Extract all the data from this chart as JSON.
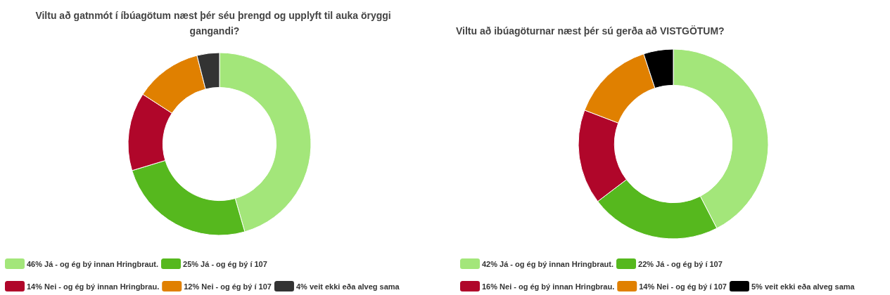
{
  "chart_data": [
    {
      "type": "donut",
      "title": "Viltu að gatnmót í íbúagötum næst þér séu þrengd og upplyft til auka öryggi gangandi?",
      "categories": [
        "46% Já - og ég bý innan Hringbraut.",
        "25% Já - og ég bý í 107",
        "14% Nei - og ég bý innan Hringbrau.",
        "12% Nei - og ég bý í 107",
        "4% veit ekki eða alveg sama"
      ],
      "values": [
        46,
        25,
        14,
        12,
        4
      ],
      "colors": [
        "#a3e67a",
        "#56b81e",
        "#b0062a",
        "#e08000",
        "#333333"
      ],
      "legend": "bottom left"
    },
    {
      "type": "donut",
      "title": "Viltu að ibúagöturnar næst þér sú gerða að VISTGÖTUM?",
      "categories": [
        "42% Já - og ég bý innan Hringbraut.",
        "22% Já - og ég bý í 107",
        "16% Nei - og ég bý innan Hringbrau.",
        "14% Nei - og ég bý í 107",
        "5% veit ekki eða alveg sama"
      ],
      "values": [
        42,
        22,
        16,
        14,
        5
      ],
      "colors": [
        "#a3e67a",
        "#56b81e",
        "#b0062a",
        "#e08000",
        "#000000"
      ],
      "legend": "bottom left"
    }
  ]
}
